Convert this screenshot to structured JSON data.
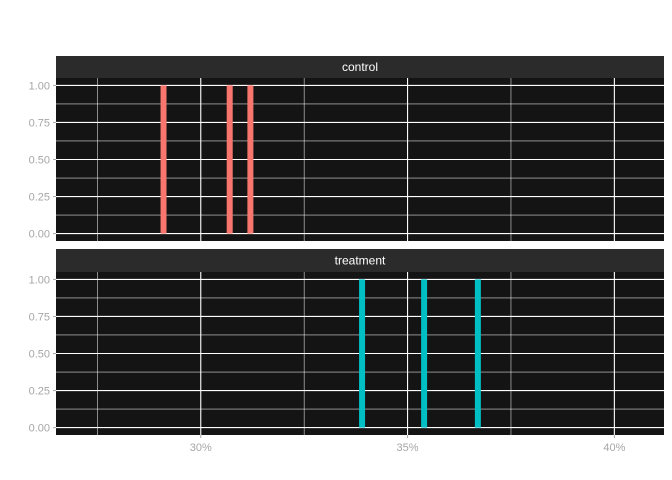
{
  "chart_data": {
    "type": "bar",
    "facet_by": "group",
    "x_scale": "percent",
    "xlim": [
      26.5,
      41.2
    ],
    "ylim": [
      -0.05,
      1.05
    ],
    "x_breaks": [
      30,
      35,
      40
    ],
    "x_tick_labels": [
      "30%",
      "35%",
      "40%"
    ],
    "y_breaks": [
      0,
      0.25,
      0.5,
      0.75,
      1
    ],
    "y_tick_labels": [
      "0.00",
      "0.25",
      "0.50",
      "0.75",
      "1.00"
    ],
    "grid": true,
    "theme": "dark",
    "legend": "none",
    "panels": [
      {
        "label": "control",
        "color": "#F8766D",
        "x": [
          29.1,
          30.7,
          31.2
        ],
        "values": [
          1,
          1,
          1
        ]
      },
      {
        "label": "treatment",
        "color": "#00BFC4",
        "x": [
          33.9,
          35.4,
          36.7
        ],
        "values": [
          1,
          1,
          1
        ]
      }
    ]
  }
}
